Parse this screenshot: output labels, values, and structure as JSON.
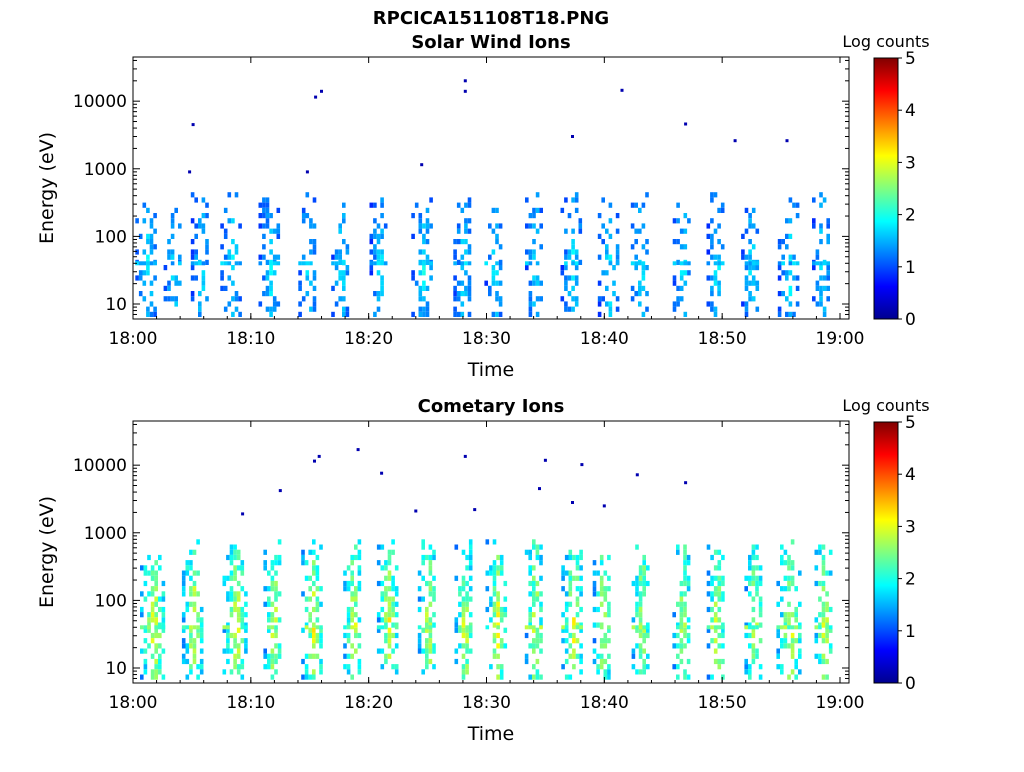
{
  "figure": {
    "filename": "RPCICA151108T18.PNG"
  },
  "chart_data": [
    {
      "type": "heatmap",
      "title": "Solar Wind Ions",
      "xlabel": "Time",
      "ylabel": "Energy (eV)",
      "x_ticks": [
        "18:00",
        "18:10",
        "18:20",
        "18:30",
        "18:40",
        "18:50",
        "19:00"
      ],
      "x_range_minutes": [
        0,
        60
      ],
      "y_scale": "log",
      "y_ticks": [
        "10",
        "100",
        "1000",
        "10000"
      ],
      "y_range": [
        6,
        45000
      ],
      "colorbar": {
        "label": "Log counts",
        "min": 0,
        "max": 5,
        "ticks": [
          "0",
          "1",
          "2",
          "3",
          "4",
          "5"
        ],
        "colormap": "jet"
      },
      "intensity_scale": 0.55,
      "scans_minute": [
        1.1,
        3.4,
        5.6,
        8.4,
        11.6,
        14.8,
        17.6,
        20.8,
        24.6,
        27.9,
        30.6,
        34.0,
        37.2,
        40.3,
        43.0,
        46.5,
        49.5,
        52.4,
        55.6,
        58.4
      ],
      "scatter_points": [
        [
          15.5,
          11500
        ],
        [
          16.0,
          14000
        ],
        [
          28.2,
          14000
        ],
        [
          28.2,
          20000
        ],
        [
          41.5,
          14500
        ],
        [
          5.1,
          4500
        ],
        [
          46.9,
          4600
        ],
        [
          37.3,
          3000
        ],
        [
          51.1,
          2600
        ],
        [
          55.5,
          2600
        ],
        [
          24.5,
          1150
        ],
        [
          4.8,
          900
        ],
        [
          14.8,
          900
        ]
      ]
    },
    {
      "type": "heatmap",
      "title": "Cometary Ions",
      "xlabel": "Time",
      "ylabel": "Energy (eV)",
      "x_ticks": [
        "18:00",
        "18:10",
        "18:20",
        "18:30",
        "18:40",
        "18:50",
        "19:00"
      ],
      "x_range_minutes": [
        0,
        60
      ],
      "y_scale": "log",
      "y_ticks": [
        "10",
        "100",
        "1000",
        "10000"
      ],
      "y_range": [
        6,
        45000
      ],
      "colorbar": {
        "label": "Log counts",
        "min": 0,
        "max": 5,
        "ticks": [
          "0",
          "1",
          "2",
          "3",
          "4",
          "5"
        ],
        "colormap": "jet"
      },
      "intensity_scale": 1.0,
      "scans_minute": [
        1.6,
        5.0,
        8.6,
        11.8,
        15.2,
        18.6,
        21.6,
        25.0,
        28.0,
        30.8,
        34.0,
        37.2,
        39.8,
        43.0,
        46.5,
        49.5,
        52.6,
        55.6,
        58.6
      ],
      "scatter_points": [
        [
          15.4,
          11500
        ],
        [
          15.8,
          13500
        ],
        [
          19.1,
          17000
        ],
        [
          28.2,
          13500
        ],
        [
          38.1,
          10200
        ],
        [
          35.0,
          11800
        ],
        [
          21.1,
          7600
        ],
        [
          46.9,
          5500
        ],
        [
          42.8,
          7200
        ],
        [
          12.5,
          4200
        ],
        [
          34.5,
          4500
        ],
        [
          29.0,
          2200
        ],
        [
          37.3,
          2800
        ],
        [
          40.0,
          2500
        ],
        [
          24.0,
          2100
        ],
        [
          9.3,
          1900
        ]
      ]
    }
  ]
}
